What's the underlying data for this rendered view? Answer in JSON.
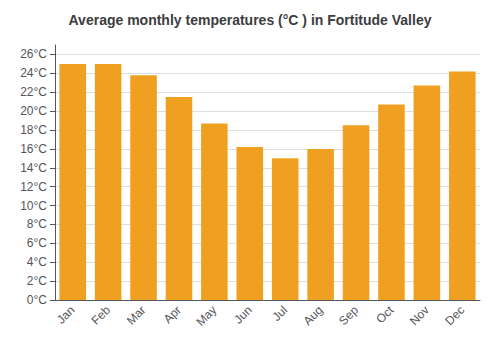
{
  "chart_data": {
    "type": "bar",
    "title": "Average monthly temperatures (°C ) in Fortitude Valley",
    "categories": [
      "Jan",
      "Feb",
      "Mar",
      "Apr",
      "May",
      "Jun",
      "Jul",
      "Aug",
      "Sep",
      "Oct",
      "Nov",
      "Dec"
    ],
    "values": [
      25.0,
      25.0,
      23.8,
      21.5,
      18.7,
      16.2,
      15.0,
      16.0,
      18.5,
      20.7,
      22.7,
      24.2
    ],
    "color": "#F0A020",
    "ylim": [
      0,
      27
    ],
    "yticks": [
      {
        "value": 0,
        "label": "0°C"
      },
      {
        "value": 2,
        "label": "2°C"
      },
      {
        "value": 4,
        "label": "4°C"
      },
      {
        "value": 6,
        "label": "6°C"
      },
      {
        "value": 8,
        "label": "8°C"
      },
      {
        "value": 10,
        "label": "10°C"
      },
      {
        "value": 12,
        "label": "12°C"
      },
      {
        "value": 14,
        "label": "14°C"
      },
      {
        "value": 16,
        "label": "16°C"
      },
      {
        "value": 18,
        "label": "18°C"
      },
      {
        "value": 20,
        "label": "20°C"
      },
      {
        "value": 22,
        "label": "22°C"
      },
      {
        "value": 24,
        "label": "24°C"
      },
      {
        "value": 26,
        "label": "26°C"
      }
    ],
    "grid": true
  }
}
